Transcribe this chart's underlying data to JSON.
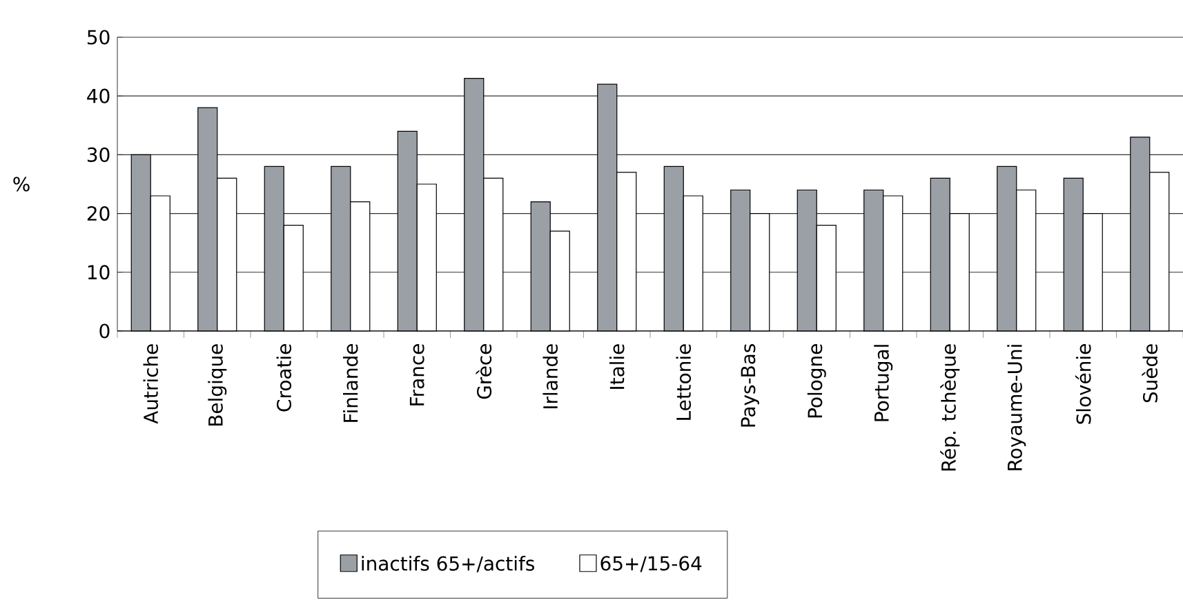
{
  "chart_data": {
    "type": "bar",
    "ylabel": "%",
    "categories": [
      "Autriche",
      "Belgique",
      "Croatie",
      "Finlande",
      "France",
      "Grèce",
      "Irlande",
      "Italie",
      "Lettonie",
      "Pays-Bas",
      "Pologne",
      "Portugal",
      "Rép. tchèque",
      "Royaume-Uni",
      "Slovénie",
      "Suède"
    ],
    "series": [
      {
        "name": "inactifs 65+/actifs",
        "color": "#9aa0a6",
        "values": [
          30,
          38,
          28,
          28,
          34,
          43,
          22,
          42,
          28,
          24,
          24,
          24,
          26,
          28,
          26,
          33
        ]
      },
      {
        "name": "65+/15-64",
        "color": "#ffffff",
        "values": [
          23,
          26,
          18,
          22,
          25,
          26,
          17,
          27,
          23,
          20,
          18,
          23,
          20,
          24,
          20,
          27
        ]
      }
    ],
    "ylim": [
      0,
      50
    ],
    "yticks": [
      0,
      10,
      20,
      30,
      40,
      50
    ],
    "grid": "y",
    "legend": "bottom"
  }
}
